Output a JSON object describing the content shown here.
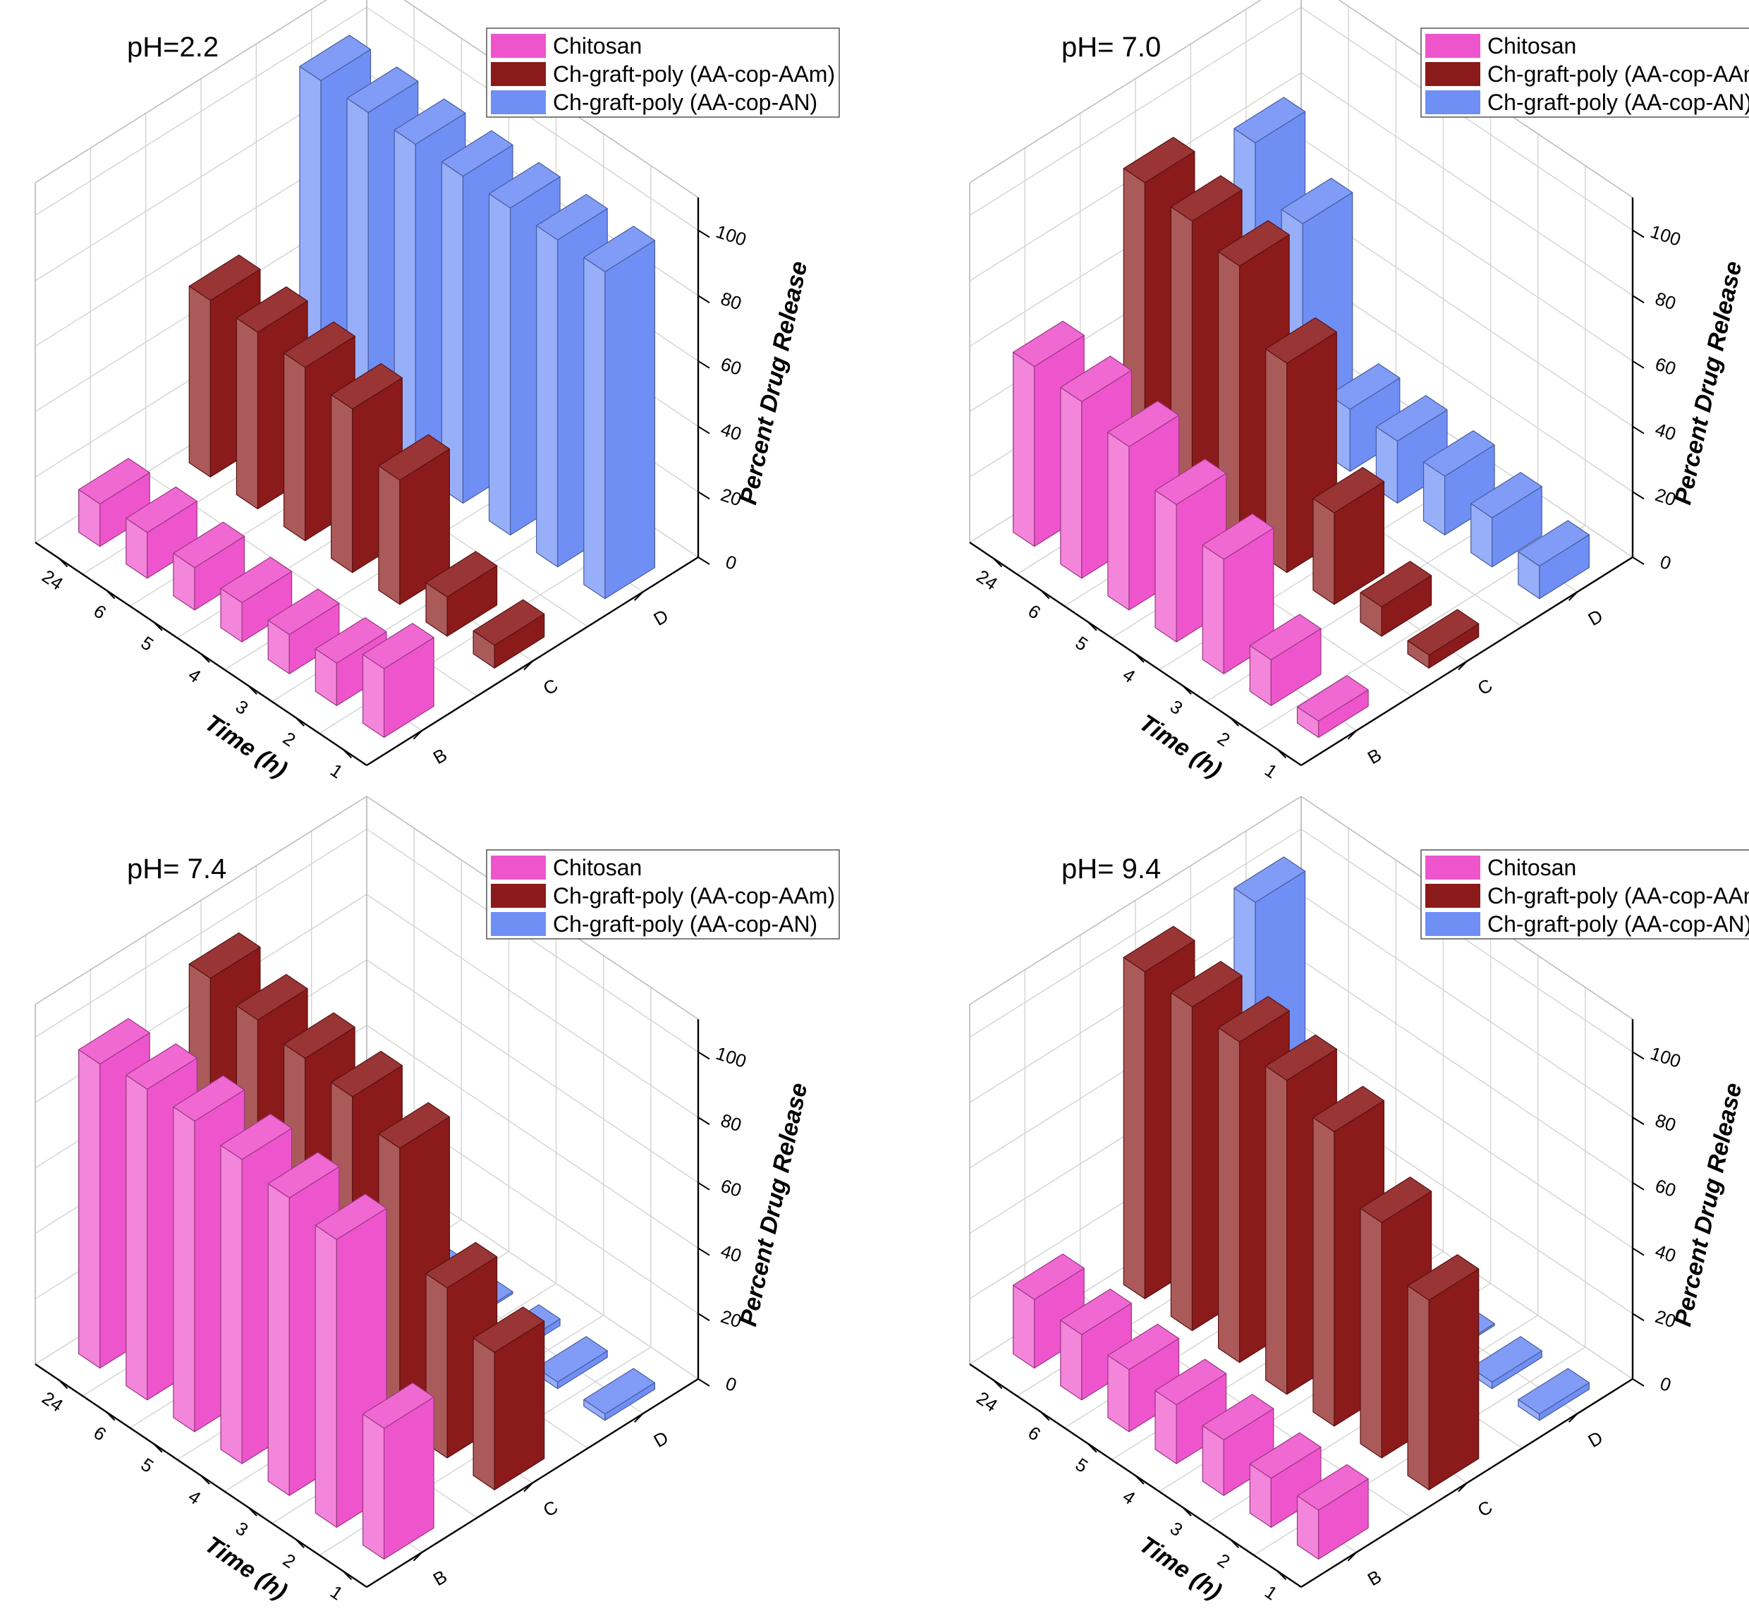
{
  "chart_data": [
    {
      "type": "bar3d",
      "title": "pH=2.2",
      "xlabel": "Time (h)",
      "ylabel": "",
      "zlabel": "Percent Drug Release",
      "x_ticks": [
        "1",
        "2",
        "3",
        "4",
        "5",
        "6",
        "24"
      ],
      "y_ticks": [
        "B",
        "C",
        "D"
      ],
      "z_ticks": [
        "0",
        "20",
        "40",
        "60",
        "80",
        "100"
      ],
      "zlim": [
        0,
        110
      ],
      "grid": true,
      "legend_position": "top-right",
      "series": [
        {
          "name": "Chitosan",
          "color": "#ee55cc",
          "values": [
            21,
            13,
            12,
            12,
            13,
            14,
            13
          ]
        },
        {
          "name": "Ch-graft-poly (AA-cop-AAm)",
          "color": "#8b1a1a",
          "values": [
            7,
            12,
            38,
            50,
            53,
            54,
            54
          ]
        },
        {
          "name": "Ch-graft-poly (AA-cop-AN)",
          "color": "#6f8ff5",
          "values": [
            100,
            100,
            100,
            100,
            100,
            100,
            100
          ]
        }
      ]
    },
    {
      "type": "bar3d",
      "title": "pH= 7.0",
      "xlabel": "Time (h)",
      "ylabel": "",
      "zlabel": "Percent Drug Release",
      "x_ticks": [
        "1",
        "2",
        "3",
        "4",
        "5",
        "6",
        "24"
      ],
      "y_ticks": [
        "B",
        "C",
        "D"
      ],
      "z_ticks": [
        "0",
        "20",
        "40",
        "60",
        "80",
        "100"
      ],
      "zlim": [
        0,
        110
      ],
      "grid": true,
      "legend_position": "top-right",
      "series": [
        {
          "name": "Chitosan",
          "color": "#ee55cc",
          "values": [
            5,
            14,
            35,
            42,
            50,
            54,
            55
          ]
        },
        {
          "name": "Ch-graft-poly (AA-cop-AAm)",
          "color": "#8b1a1a",
          "values": [
            4,
            9,
            28,
            64,
            84,
            88,
            90
          ]
        },
        {
          "name": "Ch-graft-poly (AA-cop-AN)",
          "color": "#6f8ff5",
          "values": [
            10,
            15,
            18,
            19,
            19,
            66,
            81
          ]
        }
      ]
    },
    {
      "type": "bar3d",
      "title": "pH= 7.4",
      "xlabel": "Time (h)",
      "ylabel": "",
      "zlabel": "Percent Drug Release",
      "x_ticks": [
        "1",
        "2",
        "3",
        "4",
        "5",
        "6",
        "24"
      ],
      "y_ticks": [
        "B",
        "C",
        "D"
      ],
      "z_ticks": [
        "0",
        "20",
        "40",
        "60",
        "80",
        "100"
      ],
      "zlim": [
        0,
        110
      ],
      "grid": true,
      "legend_position": "top-right",
      "series": [
        {
          "name": "Chitosan",
          "color": "#ee55cc",
          "values": [
            40,
            88,
            91,
            93,
            95,
            95,
            93
          ]
        },
        {
          "name": "Ch-graft-poly (AA-cop-AAm)",
          "color": "#8b1a1a",
          "values": [
            42,
            52,
            85,
            91,
            93,
            95,
            98
          ]
        },
        {
          "name": "Ch-graft-poly (AA-cop-AN)",
          "color": "#6f8ff5",
          "values": [
            2,
            2,
            2,
            0,
            0,
            0,
            0
          ]
        }
      ]
    },
    {
      "type": "bar3d",
      "title": "pH= 9.4",
      "xlabel": "Time (h)",
      "ylabel": "",
      "zlabel": "Percent Drug Release",
      "x_ticks": [
        "1",
        "2",
        "3",
        "4",
        "5",
        "6",
        "24"
      ],
      "y_ticks": [
        "B",
        "C",
        "D"
      ],
      "z_ticks": [
        "0",
        "20",
        "40",
        "60",
        "80",
        "100"
      ],
      "zlim": [
        0,
        110
      ],
      "grid": true,
      "legend_position": "top-right",
      "series": [
        {
          "name": "Chitosan",
          "color": "#ee55cc",
          "values": [
            15,
            15,
            17,
            18,
            19,
            20,
            21
          ]
        },
        {
          "name": "Ch-graft-poly (AA-cop-AAm)",
          "color": "#8b1a1a",
          "values": [
            58,
            72,
            90,
            96,
            98,
            99,
            100
          ]
        },
        {
          "name": "Ch-graft-poly (AA-cop-AN)",
          "color": "#6f8ff5",
          "values": [
            2,
            2,
            0,
            0,
            0,
            0,
            100
          ]
        }
      ]
    }
  ]
}
